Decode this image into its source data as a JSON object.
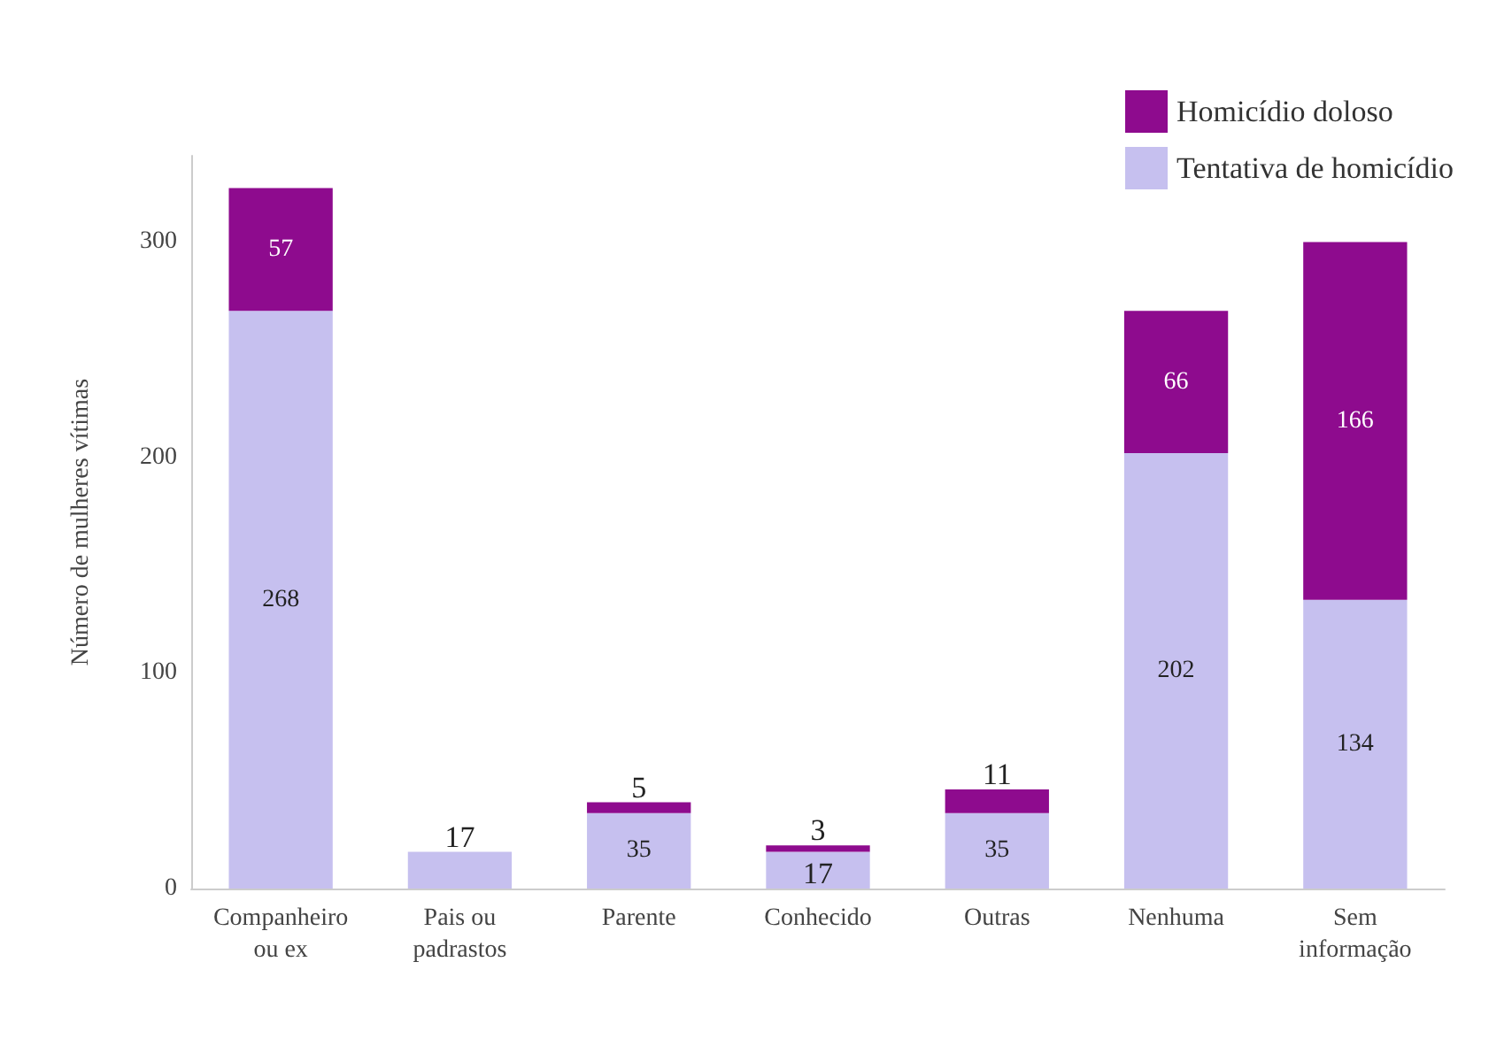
{
  "chart_data": {
    "type": "bar",
    "stacked": true,
    "ylabel": "Número de mulheres vítimas",
    "categories": [
      "Companheiro\nou ex",
      "Pais ou\npadrastos",
      "Parente",
      "Conhecido",
      "Outras",
      "Nenhuma",
      "Sem\ninformação"
    ],
    "series": [
      {
        "name": "Tentativa de homicídio",
        "color": "#c6c0ef",
        "values": [
          268,
          17,
          35,
          17,
          35,
          202,
          134
        ]
      },
      {
        "name": "Homicídio doloso",
        "color": "#8e0b8e",
        "values": [
          57,
          null,
          5,
          3,
          11,
          66,
          166
        ]
      }
    ],
    "ylim": [
      0,
      340
    ],
    "yticks": [
      0,
      100,
      200,
      300
    ],
    "grid": false,
    "legend": "top right",
    "data_labels": true
  }
}
